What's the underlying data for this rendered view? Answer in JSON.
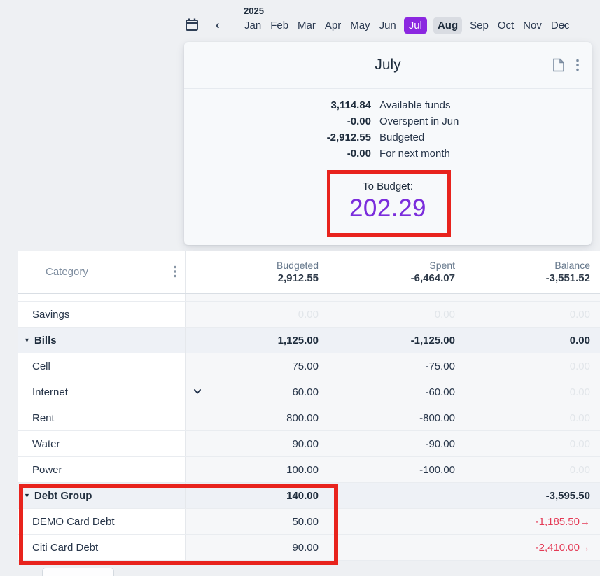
{
  "month_nav": {
    "year": "2025",
    "prev_glyph": "‹",
    "next_glyph": "›",
    "months": [
      {
        "label": "Jan",
        "state": "normal"
      },
      {
        "label": "Feb",
        "state": "normal"
      },
      {
        "label": "Mar",
        "state": "normal"
      },
      {
        "label": "Apr",
        "state": "normal"
      },
      {
        "label": "May",
        "state": "normal"
      },
      {
        "label": "Jun",
        "state": "normal"
      },
      {
        "label": "Jul",
        "state": "selected"
      },
      {
        "label": "Aug",
        "state": "highlighted"
      },
      {
        "label": "Sep",
        "state": "normal"
      },
      {
        "label": "Oct",
        "state": "normal"
      },
      {
        "label": "Nov",
        "state": "normal"
      },
      {
        "label": "Dec",
        "state": "normal"
      }
    ]
  },
  "month_card": {
    "title": "July",
    "summary": [
      {
        "value": "3,114.84",
        "label": "Available funds"
      },
      {
        "value": "-0.00",
        "label": "Overspent in Jun"
      },
      {
        "value": "-2,912.55",
        "label": "Budgeted"
      },
      {
        "value": "-0.00",
        "label": "For next month"
      }
    ],
    "to_budget_label": "To Budget:",
    "to_budget_value": "202.29"
  },
  "table": {
    "category_header": "Category",
    "columns": [
      {
        "label": "Budgeted",
        "total": "2,912.55"
      },
      {
        "label": "Spent",
        "total": "-6,464.07"
      },
      {
        "label": "Balance",
        "total": "-3,551.52"
      }
    ],
    "rows": [
      {
        "name": "Savings",
        "group": false,
        "chevron": false,
        "cells": [
          {
            "t": "0.00",
            "s": "ghost"
          },
          {
            "t": "0.00",
            "s": "ghost"
          },
          {
            "t": "0.00",
            "s": "ghost"
          }
        ]
      },
      {
        "name": "Bills",
        "group": true,
        "chevron": false,
        "cells": [
          {
            "t": "1,125.00",
            "s": "bold"
          },
          {
            "t": "-1,125.00",
            "s": "bold"
          },
          {
            "t": "0.00",
            "s": "bold"
          }
        ]
      },
      {
        "name": "Cell",
        "group": false,
        "chevron": false,
        "cells": [
          {
            "t": "75.00",
            "s": "normal"
          },
          {
            "t": "-75.00",
            "s": "normal"
          },
          {
            "t": "0.00",
            "s": "ghost"
          }
        ]
      },
      {
        "name": "Internet",
        "group": false,
        "chevron": true,
        "cells": [
          {
            "t": "60.00",
            "s": "normal"
          },
          {
            "t": "-60.00",
            "s": "normal"
          },
          {
            "t": "0.00",
            "s": "ghost"
          }
        ]
      },
      {
        "name": "Rent",
        "group": false,
        "chevron": false,
        "cells": [
          {
            "t": "800.00",
            "s": "normal"
          },
          {
            "t": "-800.00",
            "s": "normal"
          },
          {
            "t": "0.00",
            "s": "ghost"
          }
        ]
      },
      {
        "name": "Water",
        "group": false,
        "chevron": false,
        "cells": [
          {
            "t": "90.00",
            "s": "normal"
          },
          {
            "t": "-90.00",
            "s": "normal"
          },
          {
            "t": "0.00",
            "s": "ghost"
          }
        ]
      },
      {
        "name": "Power",
        "group": false,
        "chevron": false,
        "cells": [
          {
            "t": "100.00",
            "s": "normal"
          },
          {
            "t": "-100.00",
            "s": "normal"
          },
          {
            "t": "0.00",
            "s": "ghost"
          }
        ]
      },
      {
        "name": "Debt Group",
        "group": true,
        "chevron": false,
        "cells": [
          {
            "t": "140.00",
            "s": "bold"
          },
          {
            "t": "",
            "s": "normal"
          },
          {
            "t": "-3,595.50",
            "s": "bold"
          }
        ]
      },
      {
        "name": "DEMO Card Debt",
        "group": false,
        "chevron": false,
        "cells": [
          {
            "t": "50.00",
            "s": "normal"
          },
          {
            "t": "",
            "s": "normal"
          },
          {
            "t": "-1,185.50→",
            "s": "negative"
          }
        ]
      },
      {
        "name": "Citi Card Debt",
        "group": false,
        "chevron": false,
        "cells": [
          {
            "t": "90.00",
            "s": "normal"
          },
          {
            "t": "",
            "s": "normal"
          },
          {
            "t": "-2,410.00→",
            "s": "negative"
          }
        ]
      }
    ]
  },
  "colors": {
    "selected_month_bg": "#8b27e0",
    "highlighted_month_bg": "#d9dce2",
    "to_budget_purple": "#7b2ddc",
    "negative_red": "#e43b56",
    "annotation_red": "#e8231d",
    "page_bg": "#eef0f3"
  }
}
